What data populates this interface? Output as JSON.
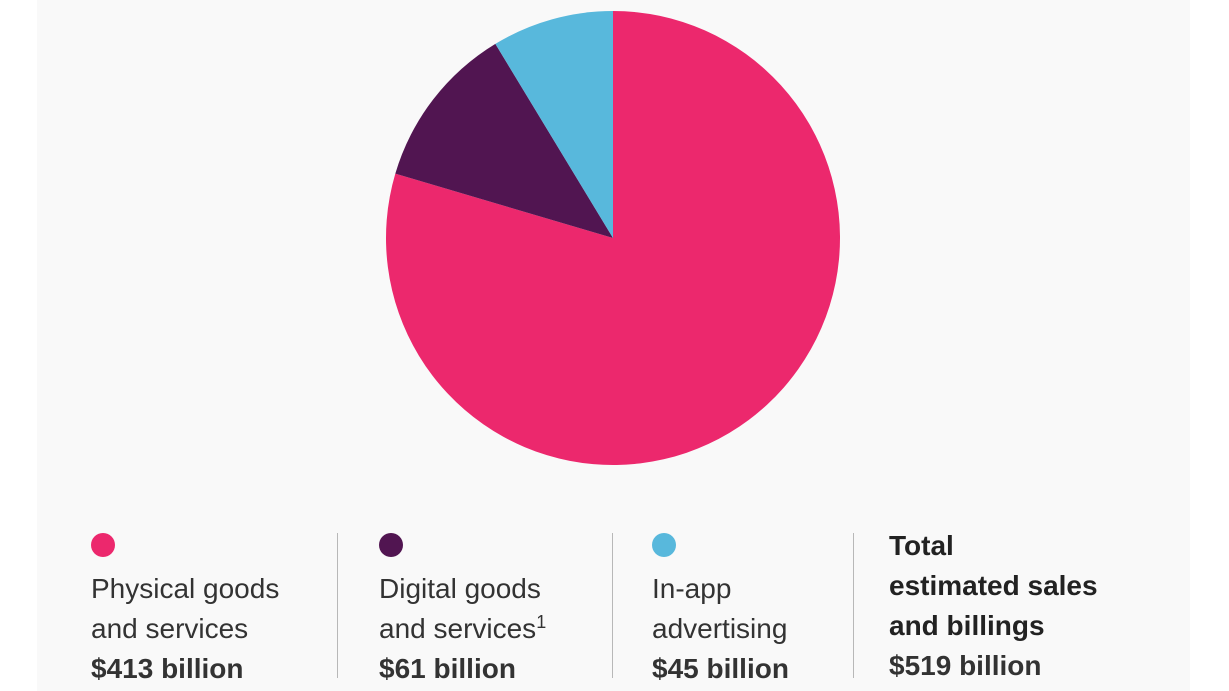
{
  "chart_data": {
    "type": "pie",
    "start": "top",
    "direction": "clockwise",
    "slices": [
      {
        "label": "Physical goods and services",
        "value": 413,
        "display": "$413 billion",
        "color": "#ec286d"
      },
      {
        "label": "Digital goods and services",
        "value": 61,
        "display": "$61 billion",
        "color": "#511551"
      },
      {
        "label": "In-app advertising",
        "value": 45,
        "display": "$45 billion",
        "color": "#58b8dc"
      }
    ],
    "total": {
      "value": 519,
      "display": "$519 billion"
    }
  },
  "legend": {
    "items": [
      {
        "line1": "Physical goods",
        "line2": "and services",
        "footnote": "",
        "value": "$413 billion",
        "color": "#ec286d"
      },
      {
        "line1": "Digital goods",
        "line2": "and services",
        "footnote": "1",
        "value": "$61 billion",
        "color": "#511551"
      },
      {
        "line1": "In-app",
        "line2": "advertising",
        "footnote": "",
        "value": "$45 billion",
        "color": "#58b8dc"
      }
    ],
    "total": {
      "line1": "Total",
      "line2": "estimated sales",
      "line3": "and billings",
      "value": "$519 billion"
    }
  }
}
